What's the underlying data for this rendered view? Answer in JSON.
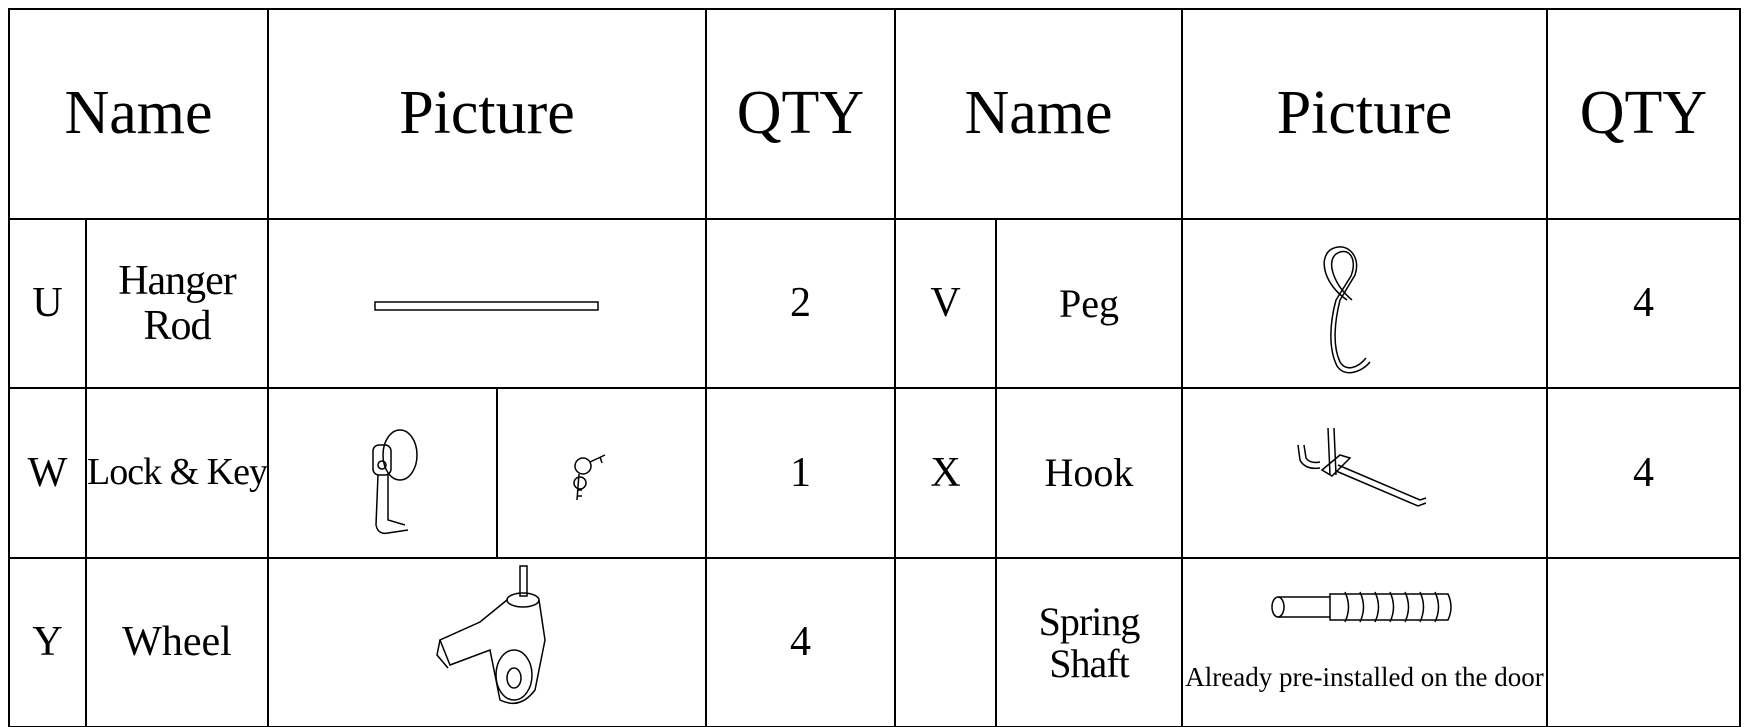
{
  "table": {
    "header": [
      "Name",
      "Picture",
      "QTY",
      "Name",
      "Picture",
      "QTY"
    ],
    "rows": [
      {
        "left": {
          "letter": "U",
          "name": "Hanger Rod",
          "qty": "2"
        },
        "right": {
          "letter": "V",
          "name": "Peg",
          "qty": "4"
        }
      },
      {
        "left": {
          "letter": "W",
          "name": "Lock & Key",
          "qty": "1"
        },
        "right": {
          "letter": "X",
          "name": "Hook",
          "qty": "4"
        }
      },
      {
        "left": {
          "letter": "Y",
          "name": "Wheel",
          "qty": "4"
        },
        "right": {
          "name": "Spring Shaft",
          "note": "Already pre-installed on the door"
        }
      }
    ]
  }
}
